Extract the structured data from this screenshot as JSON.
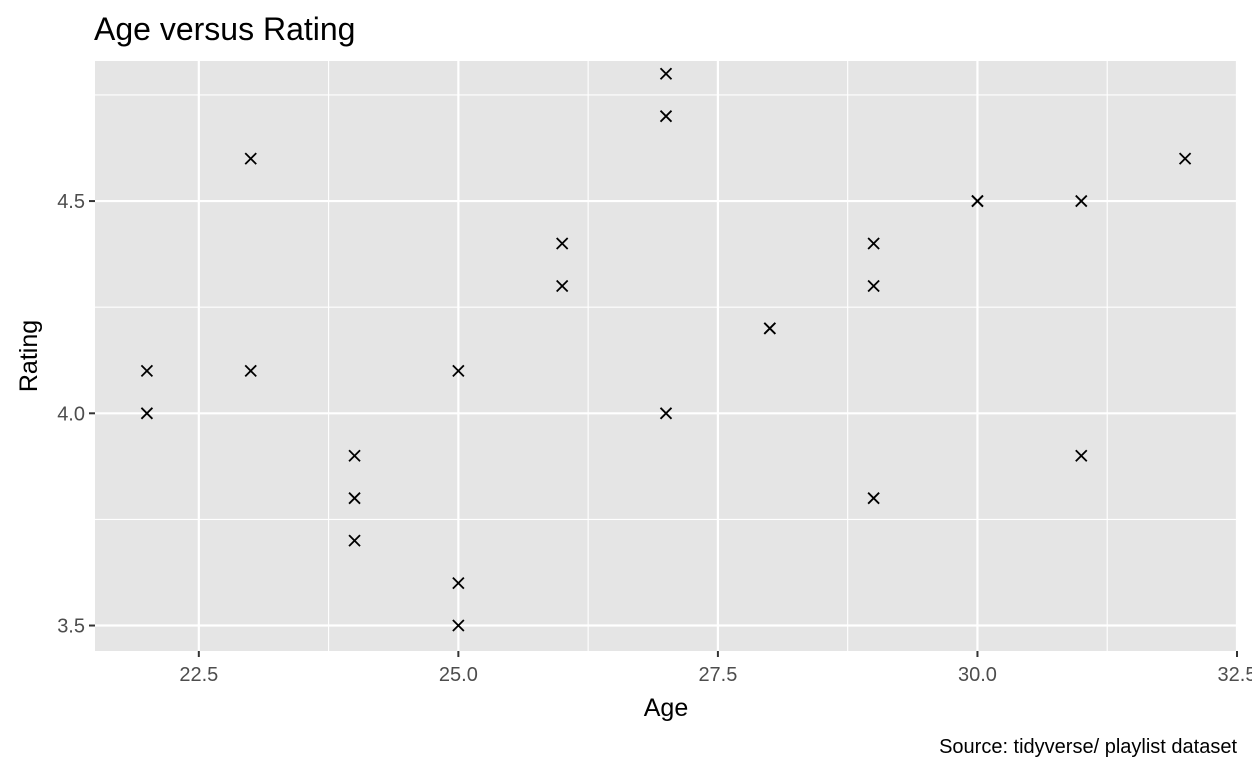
{
  "chart_data": {
    "type": "scatter",
    "title": "Age versus Rating",
    "xlabel": "Age",
    "ylabel": "Rating",
    "caption": "Source: tidyverse/ playlist dataset",
    "xlim": [
      21.5,
      32.5
    ],
    "ylim": [
      3.44,
      4.83
    ],
    "x_major_ticks": [
      22.5,
      25.0,
      27.5,
      30.0,
      32.5
    ],
    "x_tick_labels": [
      "22.5",
      "25.0",
      "27.5",
      "30.0",
      "32.5"
    ],
    "x_minor_ticks": [
      23.75,
      26.25,
      28.75,
      31.25
    ],
    "y_major_ticks": [
      3.5,
      4.0,
      4.5
    ],
    "y_tick_labels": [
      "3.5",
      "4.0",
      "4.5"
    ],
    "y_minor_ticks": [
      3.75,
      4.25,
      4.75
    ],
    "grid": true,
    "marker": "x",
    "marker_color": "#000000",
    "panel_color": "#e5e5e5",
    "points": [
      {
        "x": 22,
        "y": 4.1
      },
      {
        "x": 22,
        "y": 4.0
      },
      {
        "x": 23,
        "y": 4.6
      },
      {
        "x": 23,
        "y": 4.1
      },
      {
        "x": 24,
        "y": 3.9
      },
      {
        "x": 24,
        "y": 3.8
      },
      {
        "x": 24,
        "y": 3.7
      },
      {
        "x": 25,
        "y": 4.1
      },
      {
        "x": 25,
        "y": 3.6
      },
      {
        "x": 25,
        "y": 3.5
      },
      {
        "x": 26,
        "y": 4.4
      },
      {
        "x": 26,
        "y": 4.3
      },
      {
        "x": 27,
        "y": 4.8
      },
      {
        "x": 27,
        "y": 4.7
      },
      {
        "x": 27,
        "y": 4.0
      },
      {
        "x": 28,
        "y": 4.2
      },
      {
        "x": 28,
        "y": 4.2
      },
      {
        "x": 29,
        "y": 4.4
      },
      {
        "x": 29,
        "y": 4.3
      },
      {
        "x": 29,
        "y": 3.8
      },
      {
        "x": 30,
        "y": 4.5
      },
      {
        "x": 30,
        "y": 4.5
      },
      {
        "x": 31,
        "y": 4.5
      },
      {
        "x": 31,
        "y": 3.9
      },
      {
        "x": 32,
        "y": 4.6
      }
    ]
  }
}
